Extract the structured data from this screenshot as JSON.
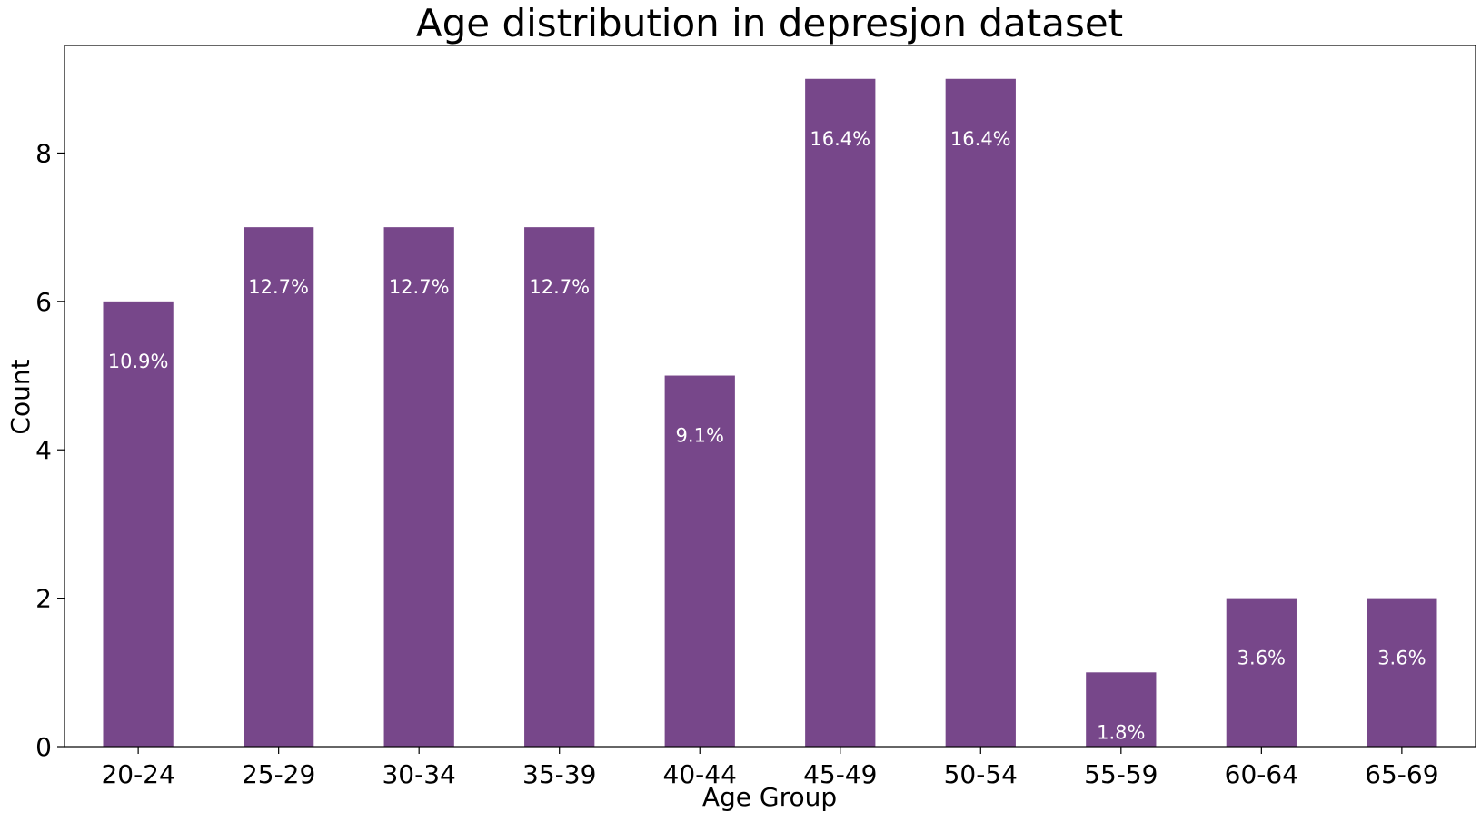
{
  "chart_data": {
    "type": "bar",
    "title": "Age distribution in depresjon dataset",
    "xlabel": "Age Group",
    "ylabel": "Count",
    "categories": [
      "20-24",
      "25-29",
      "30-34",
      "35-39",
      "40-44",
      "45-49",
      "50-54",
      "55-59",
      "60-64",
      "65-69"
    ],
    "values": [
      6,
      7,
      7,
      7,
      5,
      9,
      9,
      1,
      2,
      2
    ],
    "data_labels": [
      "10.9%",
      "12.7%",
      "12.7%",
      "12.7%",
      "9.1%",
      "16.4%",
      "16.4%",
      "1.8%",
      "3.6%",
      "3.6%"
    ],
    "ylim": [
      0,
      9.45
    ],
    "yticks": [
      0,
      2,
      4,
      6,
      8
    ],
    "grid": false,
    "legend": "none",
    "bar_color": "#77478a",
    "label_color": "#ffffff"
  }
}
